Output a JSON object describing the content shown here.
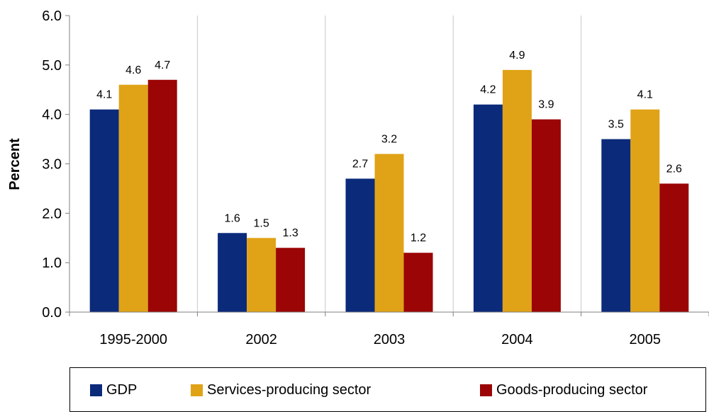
{
  "chart_data": {
    "type": "bar",
    "title": "",
    "xlabel": "",
    "ylabel": "Percent",
    "ylim": [
      0,
      6
    ],
    "yticks": [
      "0.0",
      "1.0",
      "2.0",
      "3.0",
      "4.0",
      "5.0",
      "6.0"
    ],
    "categories": [
      "1995-2000",
      "2002",
      "2003",
      "2004",
      "2005"
    ],
    "series": [
      {
        "name": "GDP",
        "color": "#0b2a7a",
        "values": [
          4.1,
          1.6,
          2.7,
          4.2,
          3.5
        ],
        "labels": [
          "4.1",
          "1.6",
          "2.7",
          "4.2",
          "3.5"
        ]
      },
      {
        "name": "Services-producing sector",
        "color": "#e0a317",
        "values": [
          4.6,
          1.5,
          3.2,
          4.9,
          4.1
        ],
        "labels": [
          "4.6",
          "1.5",
          "3.2",
          "4.9",
          "4.1"
        ]
      },
      {
        "name": "Goods-producing sector",
        "color": "#9b0505",
        "values": [
          4.7,
          1.3,
          1.2,
          3.9,
          2.6
        ],
        "labels": [
          "4.7",
          "1.3",
          "1.2",
          "3.9",
          "2.6"
        ]
      }
    ],
    "grid": "vertical separators between categories",
    "legend_position": "bottom"
  }
}
